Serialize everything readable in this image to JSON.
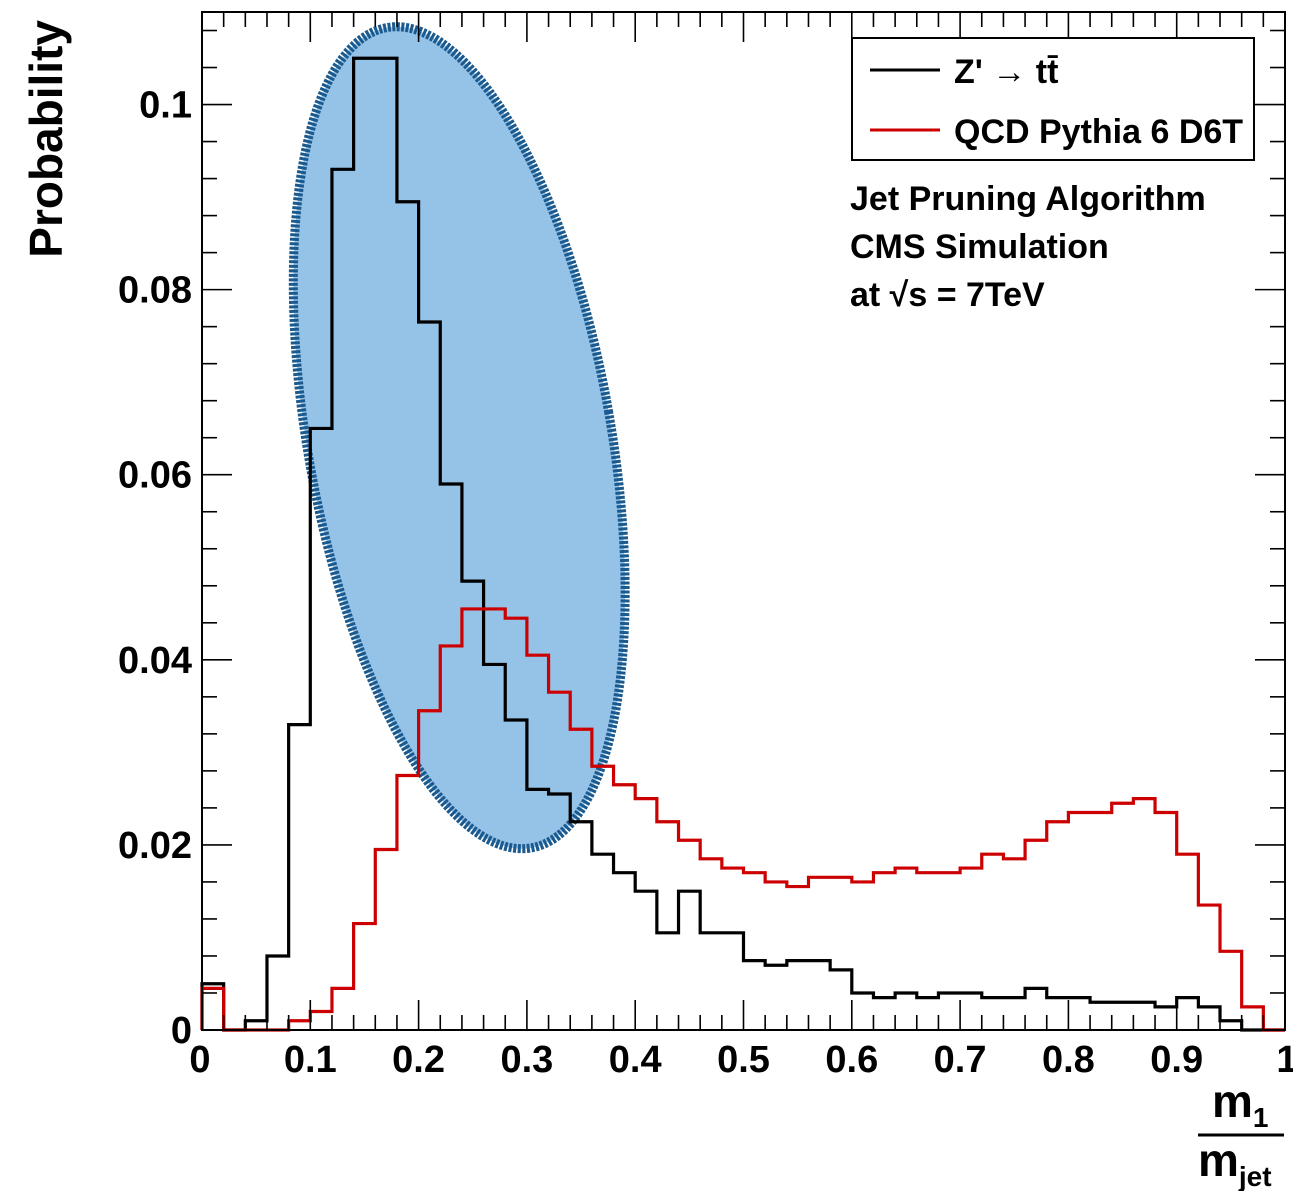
{
  "chart_data": {
    "type": "histogram",
    "ylabel": "Probability",
    "xlabel": {
      "numerator": "m",
      "numerator_sub": "1",
      "denominator": "m",
      "denominator_sub": "jet"
    },
    "xlim": [
      0,
      1
    ],
    "ylim": [
      0,
      0.11
    ],
    "x_ticks": [
      "0",
      "0.1",
      "0.2",
      "0.3",
      "0.4",
      "0.5",
      "0.6",
      "0.7",
      "0.8",
      "0.9",
      "1"
    ],
    "x_tick_values": [
      0,
      0.1,
      0.2,
      0.3,
      0.4,
      0.5,
      0.6,
      0.7,
      0.8,
      0.9,
      1.0
    ],
    "y_ticks": [
      "0",
      "0.02",
      "0.04",
      "0.06",
      "0.08",
      "0.1"
    ],
    "y_tick_values": [
      0,
      0.02,
      0.04,
      0.06,
      0.08,
      0.1
    ],
    "bin_width": 0.02,
    "grid": false,
    "legend_position": "top-right",
    "series": [
      {
        "name": "Z' → tt̄",
        "color": "#000000",
        "values": [
          0.005,
          0.0,
          0.001,
          0.008,
          0.033,
          0.065,
          0.093,
          0.105,
          0.105,
          0.0895,
          0.0765,
          0.059,
          0.0485,
          0.0395,
          0.0335,
          0.026,
          0.0255,
          0.0225,
          0.019,
          0.017,
          0.015,
          0.0105,
          0.015,
          0.0105,
          0.0105,
          0.0075,
          0.007,
          0.0075,
          0.0075,
          0.0065,
          0.004,
          0.0035,
          0.004,
          0.0035,
          0.004,
          0.004,
          0.0035,
          0.0035,
          0.0045,
          0.0035,
          0.0035,
          0.003,
          0.003,
          0.003,
          0.0025,
          0.0035,
          0.0025,
          0.001,
          0.0,
          0.0
        ]
      },
      {
        "name": "QCD Pythia 6 D6T",
        "color": "#cc0000",
        "values": [
          0.0045,
          0.0,
          0.0,
          0.0,
          0.001,
          0.002,
          0.0045,
          0.0115,
          0.0195,
          0.0275,
          0.0345,
          0.0415,
          0.0455,
          0.0455,
          0.0445,
          0.0405,
          0.0365,
          0.0325,
          0.0285,
          0.0265,
          0.025,
          0.0225,
          0.0205,
          0.0185,
          0.0175,
          0.017,
          0.016,
          0.0155,
          0.0165,
          0.0165,
          0.016,
          0.017,
          0.0175,
          0.017,
          0.017,
          0.0175,
          0.019,
          0.0185,
          0.0205,
          0.0225,
          0.0235,
          0.0235,
          0.0245,
          0.025,
          0.0235,
          0.019,
          0.0135,
          0.0085,
          0.0025,
          0.0
        ]
      }
    ],
    "annotations": [
      "Jet Pruning Algorithm",
      "CMS Simulation",
      "at √s = 7TeV"
    ],
    "highlight": {
      "shape": "ellipse",
      "fill": "#8fbfe6",
      "stroke": "#1b5a8e",
      "center": {
        "x": 0.2375,
        "y": 0.064
      },
      "half_width_x": 0.14,
      "half_height_y": 0.045,
      "rotation_deg": -10
    }
  }
}
